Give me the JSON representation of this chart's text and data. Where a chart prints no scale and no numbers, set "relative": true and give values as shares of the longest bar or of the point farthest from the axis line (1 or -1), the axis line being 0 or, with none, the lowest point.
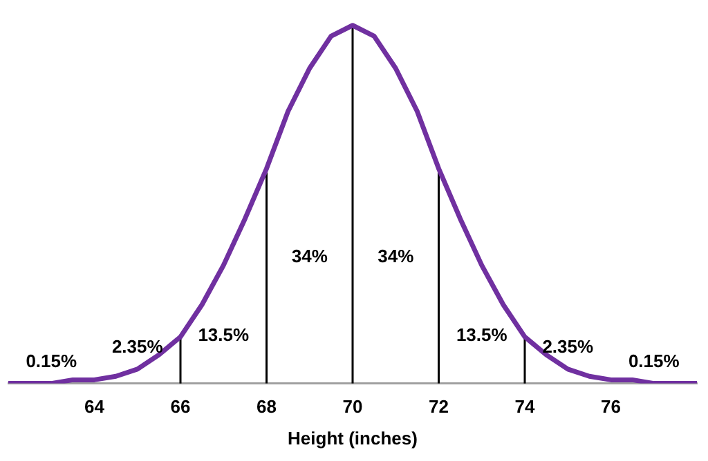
{
  "chart_data": {
    "type": "line",
    "relative": true,
    "xlabel": "Height (inches)",
    "x": [
      62,
      62.5,
      63,
      63.5,
      64,
      64.5,
      65,
      65.5,
      66,
      66.5,
      67,
      67.5,
      68,
      68.5,
      69,
      69.5,
      70,
      70.5,
      71,
      71.5,
      72,
      72.5,
      73,
      73.5,
      74,
      74.5,
      75,
      75.5,
      76,
      76.5,
      77,
      77.5,
      78
    ],
    "series": [
      {
        "color": "#7030a0",
        "values": [
          0,
          0,
          0,
          0.01,
          0.01,
          0.02,
          0.04,
          0.08,
          0.13,
          0.22,
          0.33,
          0.46,
          0.6,
          0.76,
          0.88,
          0.97,
          1,
          0.97,
          0.88,
          0.76,
          0.6,
          0.46,
          0.33,
          0.22,
          0.13,
          0.08,
          0.04,
          0.02,
          0.01,
          0.01,
          0,
          0,
          0
        ]
      }
    ],
    "xlim": [
      62,
      78
    ],
    "xticks": [
      64,
      66,
      68,
      70,
      72,
      74,
      76
    ],
    "ref_lines": [
      {
        "axis": "x",
        "value": 66,
        "color": "#000000"
      },
      {
        "axis": "x",
        "value": 68,
        "color": "#000000"
      },
      {
        "axis": "x",
        "value": 70,
        "color": "#000000"
      },
      {
        "axis": "x",
        "value": 72,
        "color": "#000000"
      },
      {
        "axis": "x",
        "value": 74,
        "color": "#000000"
      }
    ],
    "annotations": [
      "0.15%",
      "2.35%",
      "13.5%",
      "34%",
      "34%",
      "13.5%",
      "2.35%",
      "0.15%"
    ],
    "grid": false,
    "legend": false,
    "marker": "none",
    "line_style": "solid"
  }
}
